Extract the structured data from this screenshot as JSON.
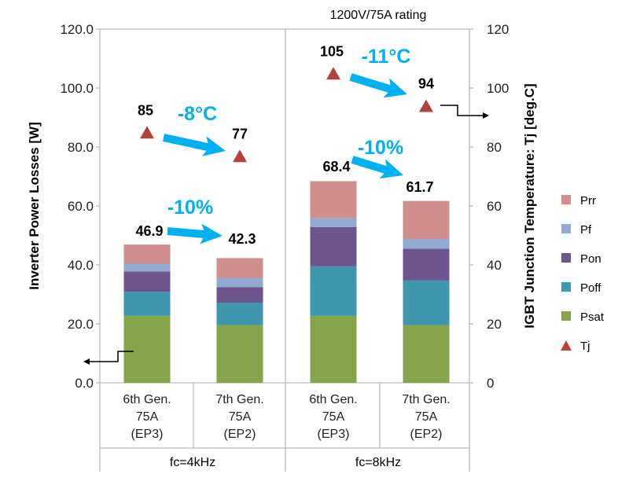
{
  "chart_data": {
    "type": "bar",
    "stacked": true,
    "title": "1200V/75A rating",
    "ylabel": "Inverter Power Losses [W]",
    "y2label": "IGBT Junction Temperature: Tj [deg.C]",
    "ylim": [
      0,
      120
    ],
    "y2lim": [
      0,
      120
    ],
    "yticks": [
      "0.0",
      "20.0",
      "40.0",
      "60.0",
      "80.0",
      "100.0",
      "120.0"
    ],
    "y2ticks": [
      "0",
      "20",
      "40",
      "60",
      "80",
      "100",
      "120"
    ],
    "groups": [
      "fc=4kHz",
      "fc=8kHz"
    ],
    "categories": [
      [
        "6th Gen.",
        "75A",
        "(EP3)"
      ],
      [
        "7th Gen.",
        "75A",
        "(EP2)"
      ],
      [
        "6th Gen.",
        "75A",
        "(EP3)"
      ],
      [
        "7th Gen.",
        "75A",
        "(EP2)"
      ]
    ],
    "series": [
      {
        "name": "Psat",
        "color": "#86a44a",
        "values": [
          22.7,
          19.6,
          22.7,
          19.6
        ]
      },
      {
        "name": "Poff",
        "color": "#3f97ae",
        "values": [
          8.2,
          7.6,
          16.8,
          15.1
        ]
      },
      {
        "name": "Pon",
        "color": "#6e548c",
        "values": [
          6.9,
          5.2,
          13.3,
          10.8
        ]
      },
      {
        "name": "Pf",
        "color": "#92a9d2",
        "values": [
          2.6,
          3.2,
          3.0,
          3.3
        ]
      },
      {
        "name": "Prr",
        "color": "#d08e8c",
        "values": [
          6.5,
          6.7,
          12.6,
          12.9
        ]
      }
    ],
    "totals": [
      "46.9",
      "42.3",
      "68.4",
      "61.7"
    ],
    "tj": {
      "name": "Tj",
      "color": "#b3413d",
      "values": [
        85,
        77,
        105,
        94
      ],
      "labels": [
        "85",
        "77",
        "105",
        "94"
      ]
    },
    "annotations": {
      "loss_4k": "-10%",
      "loss_8k": "-10%",
      "tj_4k": "-8°C",
      "tj_8k": "-11°C"
    },
    "legend_position": "right",
    "grid": false
  }
}
